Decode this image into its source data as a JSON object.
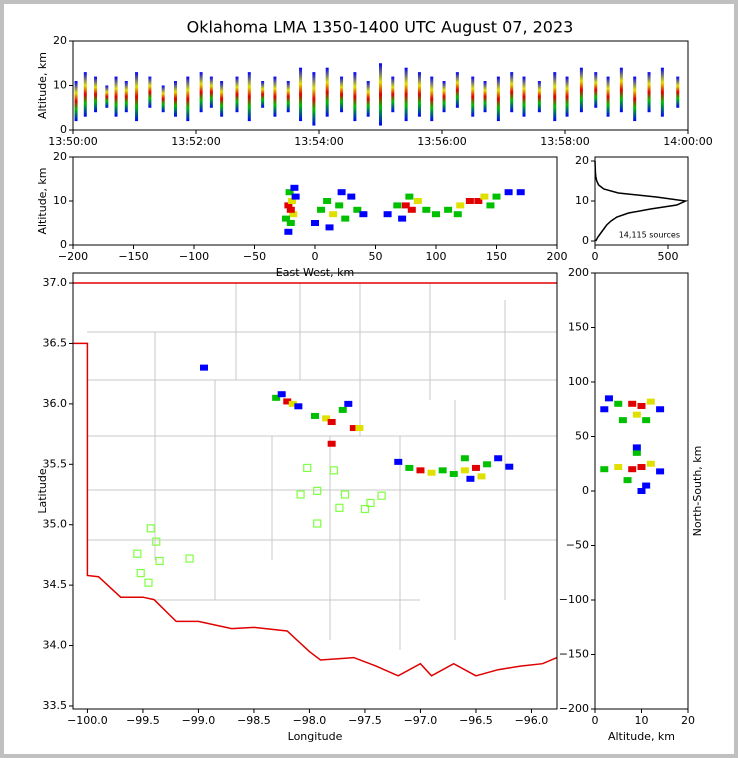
{
  "chart_data": [
    {
      "type": "range",
      "title": "Oklahoma LMA 1350-1400 UTC August 07, 2023",
      "ylabel": "Altitude, km",
      "xlim": [
        0,
        600
      ],
      "ylim": [
        0,
        20
      ],
      "xticks": [
        {
          "value": 0,
          "label": "13:50:00"
        },
        {
          "value": 120,
          "label": "13:52:00"
        },
        {
          "value": 240,
          "label": "13:54:00"
        },
        {
          "value": 360,
          "label": "13:56:00"
        },
        {
          "value": 480,
          "label": "13:58:00"
        },
        {
          "value": 600,
          "label": "14:00:00"
        }
      ],
      "yticks": [
        0,
        10,
        20
      ],
      "x": [
        3,
        12,
        22,
        33,
        42,
        52,
        62,
        75,
        88,
        100,
        112,
        125,
        135,
        145,
        160,
        172,
        185,
        197,
        210,
        222,
        235,
        248,
        262,
        275,
        288,
        300,
        312,
        325,
        338,
        350,
        362,
        375,
        390,
        402,
        415,
        428,
        440,
        455,
        470,
        482,
        496,
        510,
        522,
        535,
        548,
        562,
        575,
        590
      ],
      "low": [
        2,
        3,
        4,
        5,
        3,
        4,
        2,
        5,
        4,
        3,
        2,
        4,
        5,
        3,
        4,
        2,
        5,
        3,
        4,
        2,
        1,
        3,
        4,
        2,
        3,
        1,
        4,
        2,
        3,
        2,
        4,
        5,
        3,
        4,
        2,
        4,
        3,
        4,
        2,
        3,
        4,
        5,
        3,
        4,
        2,
        4,
        3,
        5
      ],
      "high": [
        11,
        13,
        12,
        10,
        12,
        11,
        13,
        12,
        10,
        11,
        12,
        13,
        12,
        11,
        12,
        13,
        11,
        12,
        11,
        14,
        13,
        14,
        12,
        13,
        11,
        15,
        12,
        14,
        13,
        12,
        11,
        13,
        12,
        11,
        12,
        13,
        12,
        11,
        13,
        12,
        14,
        13,
        12,
        14,
        12,
        13,
        14,
        12
      ]
    },
    {
      "type": "scatter",
      "xlabel": "East-West, km",
      "ylabel": "Altitude, km",
      "xlim": [
        -200,
        200
      ],
      "ylim": [
        0,
        20
      ],
      "xticks": [
        {
          "value": -200,
          "label": "−200"
        },
        {
          "value": -150,
          "label": "−150"
        },
        {
          "value": -100,
          "label": "−100"
        },
        {
          "value": -50,
          "label": "−50"
        },
        0,
        50,
        100,
        150,
        200
      ],
      "yticks": [
        0,
        10,
        20
      ],
      "series": [
        {
          "marker": "square",
          "x": [
            -22,
            -20,
            -18,
            -20,
            -22,
            -19,
            -21,
            -17,
            -24,
            -16,
            0,
            5,
            10,
            15,
            20,
            25,
            30,
            35,
            12,
            40,
            22,
            60,
            68,
            75,
            80,
            85,
            92,
            100,
            78,
            72,
            110,
            120,
            128,
            135,
            140,
            150,
            160,
            170,
            118,
            145
          ],
          "values": [
            3,
            5,
            7,
            8,
            9,
            10,
            12,
            13,
            6,
            11,
            5,
            8,
            10,
            7,
            9,
            6,
            11,
            8,
            4,
            7,
            12,
            7,
            9,
            9,
            8,
            10,
            8,
            7,
            11,
            6,
            8,
            9,
            10,
            10,
            11,
            11,
            12,
            12,
            7,
            9
          ],
          "colors": [
            "#0000ff",
            "#00c000",
            "#e0e000",
            "#e00000",
            "#e00000",
            "#e0e000",
            "#00c000",
            "#0000ff",
            "#00c000",
            "#0000ff",
            "#0000ff",
            "#00c000",
            "#00c000",
            "#e0e000",
            "#00c000",
            "#00c000",
            "#0000ff",
            "#00c000",
            "#0000ff",
            "#0000ff",
            "#0000ff",
            "#0000ff",
            "#00c000",
            "#e00000",
            "#e00000",
            "#e0e000",
            "#00c000",
            "#00c000",
            "#00c000",
            "#0000ff",
            "#00c000",
            "#e0e000",
            "#e00000",
            "#e00000",
            "#e0e000",
            "#00c000",
            "#0000ff",
            "#0000ff",
            "#00c000",
            "#00c000"
          ]
        }
      ]
    },
    {
      "type": "line",
      "orientation": "horizontal",
      "annotation": "14,115 sources",
      "color": "#000000",
      "xlim": [
        0,
        637
      ],
      "ylim": [
        -1,
        21
      ],
      "xticks": [
        0,
        500
      ],
      "yticks": [
        0,
        10,
        20
      ],
      "y": [
        0,
        1,
        2,
        3,
        4,
        5,
        6,
        7,
        8,
        9,
        10,
        11,
        12,
        13,
        14,
        15,
        16,
        17,
        18,
        19,
        20
      ],
      "values": [
        5,
        20,
        40,
        60,
        80,
        110,
        150,
        230,
        380,
        560,
        620,
        420,
        160,
        60,
        25,
        12,
        6,
        3,
        2,
        1,
        0
      ]
    },
    {
      "type": "scatter",
      "xlabel": "Longitude",
      "ylabel": "Latitude",
      "xlim": [
        -100.13,
        -95.77
      ],
      "ylim": [
        33.475,
        37.083
      ],
      "xticks": [
        {
          "value": -100,
          "label": "−100.0"
        },
        {
          "value": -99.5,
          "label": "−99.5"
        },
        {
          "value": -99,
          "label": "−99.0"
        },
        {
          "value": -98.5,
          "label": "−98.5"
        },
        {
          "value": -98,
          "label": "−98.0"
        },
        {
          "value": -97.5,
          "label": "−97.5"
        },
        {
          "value": -97,
          "label": "−97.0"
        },
        {
          "value": -96.5,
          "label": "−96.5"
        },
        {
          "value": -96,
          "label": "−96.0"
        }
      ],
      "yticks": [
        33.5,
        {
          "value": 34,
          "label": "34.0"
        },
        34.5,
        {
          "value": 35,
          "label": "35.0"
        },
        35.5,
        {
          "value": 36,
          "label": "36.0"
        },
        36.5,
        {
          "value": 37,
          "label": "37.0"
        }
      ],
      "series": [
        {
          "marker": "square",
          "x": [
            -98.3,
            -98.2,
            -98.15,
            -98.1,
            -98.25,
            -98.95,
            -97.95,
            -97.85,
            -97.8,
            -97.7,
            -97.65,
            -97.6,
            -97.55,
            -97.8,
            -97.2,
            -97.1,
            -97.0,
            -96.9,
            -96.8,
            -96.7,
            -96.6,
            -96.5,
            -96.45,
            -96.4,
            -96.3,
            -96.2,
            -96.55,
            -96.6
          ],
          "values": [
            36.05,
            36.02,
            36.0,
            35.98,
            36.08,
            36.3,
            35.9,
            35.88,
            35.85,
            35.95,
            36.0,
            35.8,
            35.8,
            35.67,
            35.52,
            35.47,
            35.45,
            35.43,
            35.45,
            35.42,
            35.45,
            35.47,
            35.4,
            35.5,
            35.55,
            35.48,
            35.38,
            35.55
          ],
          "colors": [
            "#00c000",
            "#e00000",
            "#e0e000",
            "#0000ff",
            "#0000ff",
            "#0000ff",
            "#00c000",
            "#e0e000",
            "#e00000",
            "#00c000",
            "#0000ff",
            "#e00000",
            "#e0e000",
            "#e00000",
            "#0000ff",
            "#00c000",
            "#e00000",
            "#e0e000",
            "#00c000",
            "#00c000",
            "#e0e000",
            "#e00000",
            "#e0e000",
            "#00c000",
            "#0000ff",
            "#0000ff",
            "#0000ff",
            "#00c000"
          ]
        },
        {
          "marker": "square-open",
          "color": "#80ff40",
          "x": [
            -98.02,
            -97.78,
            -98.08,
            -97.93,
            -97.68,
            -97.35,
            -97.45,
            -97.5,
            -97.73,
            -97.93,
            -99.43,
            -99.38,
            -99.35,
            -99.08,
            -99.55,
            -99.52,
            -99.45
          ],
          "values": [
            35.47,
            35.45,
            35.25,
            35.28,
            35.25,
            35.24,
            35.18,
            35.13,
            35.14,
            35.01,
            34.97,
            34.86,
            34.7,
            34.72,
            34.76,
            34.6,
            34.52
          ]
        }
      ]
    },
    {
      "type": "scatter",
      "xlabel": "Altitude, km",
      "ylabel": "North-South, km",
      "ylabel_side": "right",
      "xlim": [
        0,
        20
      ],
      "ylim": [
        -200,
        200
      ],
      "xticks": [
        0,
        10,
        20
      ],
      "yticks": [
        {
          "value": -200,
          "label": "−200"
        },
        {
          "value": -150,
          "label": "−150"
        },
        {
          "value": -100,
          "label": "−100"
        },
        {
          "value": -50,
          "label": "−50"
        },
        0,
        50,
        100,
        150,
        200
      ],
      "series": [
        {
          "marker": "square",
          "x": [
            2,
            5,
            8,
            10,
            12,
            14,
            6,
            9,
            11,
            3,
            2,
            5,
            8,
            10,
            12,
            9,
            7,
            11,
            14,
            9,
            10
          ],
          "values": [
            75,
            80,
            80,
            78,
            82,
            75,
            65,
            70,
            65,
            85,
            20,
            22,
            20,
            22,
            25,
            35,
            10,
            5,
            18,
            40,
            0
          ],
          "colors": [
            "#0000ff",
            "#00c000",
            "#e00000",
            "#e00000",
            "#e0e000",
            "#0000ff",
            "#00c000",
            "#e0e000",
            "#00c000",
            "#0000ff",
            "#00c000",
            "#e0e000",
            "#e00000",
            "#e00000",
            "#e0e000",
            "#00c000",
            "#00c000",
            "#0000ff",
            "#0000ff",
            "#0000ff",
            "#0000ff"
          ]
        }
      ]
    }
  ]
}
